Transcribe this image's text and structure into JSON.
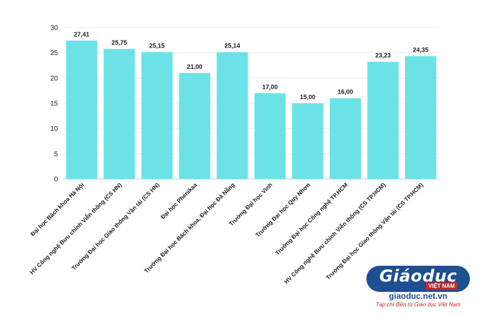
{
  "chart_data": {
    "type": "bar",
    "categories": [
      "Đại học Bách khoa Hà Nội",
      "HV Công nghệ Bưu chính Viễn thông (CS HN)",
      "Trường Đại học Giao thông Vận tải (CS HN)",
      "Đại học Phenikaa",
      "Trường Đại học Bách khoa, Đại học Đà Nẵng",
      "Trường Đại học Vinh",
      "Trường Đại học Quy Nhơn",
      "Trường Đại học Công nghệ TP.HCM",
      "HV Công nghệ Bưu chính Viễn thông (CS TP.HCM)",
      "Trường Đại học Giao thông Vận tải (CS TP.HCM)"
    ],
    "values": [
      27.41,
      25.75,
      25.15,
      21.0,
      25.14,
      17.0,
      15.0,
      16.0,
      23.23,
      24.35
    ],
    "value_labels": [
      "27,41",
      "25,75",
      "25,15",
      "21,00",
      "25,14",
      "17,00",
      "15,00",
      "16,00",
      "23,23",
      "24,35"
    ],
    "y_ticks": [
      "0",
      "5",
      "10",
      "15",
      "20",
      "25",
      "30"
    ],
    "ylim": [
      0,
      30
    ],
    "title": "",
    "xlabel": "",
    "ylabel": "",
    "grid": true,
    "bar_color": "#6be3e6"
  },
  "logo": {
    "word": "Giáoduc",
    "sub": "VIỆT NAM",
    "site": "giaoduc.net.vn",
    "tagline": "Tạp chí điện tử Giáo dục Việt Nam"
  }
}
